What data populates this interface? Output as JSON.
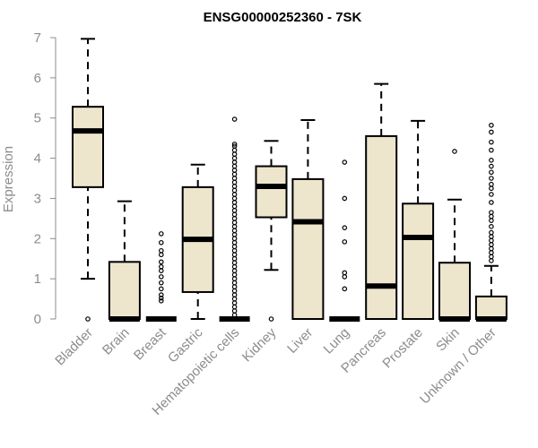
{
  "colors": {
    "box_fill": "#ede6cd",
    "axis": "#8c8c8c",
    "stroke": "#000000"
  },
  "chart_data": {
    "type": "boxplot",
    "title": "ENSG00000252360 - 7SK",
    "xlabel": "",
    "ylabel": "Expression",
    "ylim": [
      0,
      7
    ],
    "yticks": [
      "0",
      "1",
      "2",
      "3",
      "4",
      "5",
      "6",
      "7"
    ],
    "categories": [
      "Bladder",
      "Brain",
      "Breast",
      "Gastric",
      "Hematopoietic cells",
      "Kidney",
      "Liver",
      "Lung",
      "Pancreas",
      "Prostate",
      "Skin",
      "Unknown / Other"
    ],
    "boxes": [
      {
        "min": 1.0,
        "q1": 3.28,
        "median": 4.68,
        "q3": 5.28,
        "max": 6.97,
        "outliers": [
          0
        ]
      },
      {
        "min": 0,
        "q1": 0,
        "median": 0,
        "q3": 1.42,
        "max": 2.93,
        "outliers": []
      },
      {
        "min": 0,
        "q1": 0,
        "median": 0,
        "q3": 0,
        "max": 0,
        "outliers": [
          0.45,
          0.52,
          0.6,
          0.75,
          0.9,
          1.05,
          1.2,
          1.3,
          1.42,
          1.6,
          1.7,
          1.9,
          2.12
        ]
      },
      {
        "min": 0,
        "q1": 0.67,
        "median": 1.98,
        "q3": 3.28,
        "max": 3.84,
        "outliers": []
      },
      {
        "min": 0,
        "q1": 0,
        "median": 0,
        "q3": 0,
        "max": 0,
        "outliers": [
          0.1,
          0.2,
          0.3,
          0.4,
          0.5,
          0.6,
          0.7,
          0.8,
          0.9,
          1.0,
          1.1,
          1.2,
          1.3,
          1.4,
          1.5,
          1.6,
          1.7,
          1.8,
          1.9,
          2.0,
          2.1,
          2.2,
          2.3,
          2.4,
          2.5,
          2.6,
          2.7,
          2.8,
          2.9,
          3.0,
          3.1,
          3.2,
          3.3,
          3.4,
          3.5,
          3.6,
          3.7,
          3.8,
          3.9,
          4.0,
          4.1,
          4.2,
          4.3,
          4.35,
          4.97
        ]
      },
      {
        "min": 1.22,
        "q1": 2.53,
        "median": 3.3,
        "q3": 3.8,
        "max": 4.43,
        "outliers": [
          0
        ]
      },
      {
        "min": 0,
        "q1": 0,
        "median": 2.42,
        "q3": 3.48,
        "max": 4.95,
        "outliers": []
      },
      {
        "min": 0,
        "q1": 0,
        "median": 0,
        "q3": 0,
        "max": 0,
        "outliers": [
          0.75,
          1.05,
          1.15,
          1.92,
          2.27,
          3.0,
          3.9
        ]
      },
      {
        "min": 0,
        "q1": 0,
        "median": 0.82,
        "q3": 4.55,
        "max": 5.85,
        "outliers": []
      },
      {
        "min": 0,
        "q1": 0,
        "median": 2.03,
        "q3": 2.87,
        "max": 4.93,
        "outliers": []
      },
      {
        "min": 0,
        "q1": 0,
        "median": 0,
        "q3": 1.4,
        "max": 2.97,
        "outliers": [
          4.17
        ]
      },
      {
        "min": 0,
        "q1": 0,
        "median": 0,
        "q3": 0.56,
        "max": 1.32,
        "outliers": [
          1.45,
          1.55,
          1.65,
          1.75,
          1.85,
          1.95,
          2.05,
          2.15,
          2.3,
          2.45,
          2.55,
          2.65,
          2.9,
          3.1,
          3.25,
          3.35,
          3.5,
          3.65,
          3.8,
          3.95,
          4.2,
          4.4,
          4.65,
          4.82
        ]
      }
    ]
  }
}
